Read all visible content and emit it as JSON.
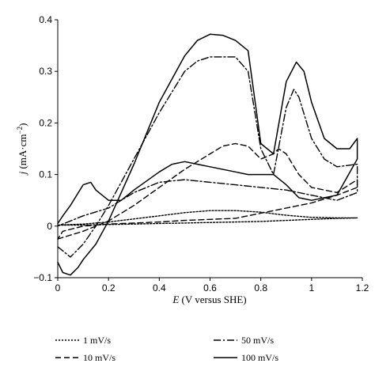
{
  "chart_data": {
    "type": "line",
    "title": "",
    "xlabel": "E (V versus SHE)",
    "xlabel_symbol": "E",
    "xlabel_rest": " (V versus SHE)",
    "ylabel": "j (mA·cm−2)",
    "ylabel_symbol": "j",
    "ylabel_rest": " (mA·cm",
    "ylabel_exp": "−2",
    "ylabel_close": ")",
    "xlim": [
      0,
      1.2
    ],
    "ylim": [
      -0.1,
      0.4
    ],
    "xticks": [
      0,
      0.2,
      0.4,
      0.6,
      0.8,
      1,
      1.2
    ],
    "xtick_labels": [
      "0",
      "0.2",
      "0.4",
      "0.6",
      "0.8",
      "1",
      "1.2"
    ],
    "yticks": [
      -0.1,
      0,
      0.1,
      0.2,
      0.3,
      0.4
    ],
    "ytick_labels": [
      "−0.1",
      "0",
      "0.1",
      "0.2",
      "0.3",
      "0.4"
    ],
    "grid": false,
    "legend_position": "bottom",
    "series": [
      {
        "name": "1 mV/s",
        "dash": "dotted",
        "x": [
          0.0,
          0.1,
          0.2,
          0.3,
          0.4,
          0.5,
          0.6,
          0.7,
          0.8,
          0.85,
          0.9,
          0.95,
          1.0,
          1.1,
          1.18,
          1.1,
          1.0,
          0.9,
          0.8,
          0.7,
          0.6,
          0.5,
          0.4,
          0.3,
          0.2,
          0.1,
          0.0
        ],
        "y": [
          0.002,
          0.004,
          0.008,
          0.014,
          0.02,
          0.026,
          0.03,
          0.03,
          0.027,
          0.024,
          0.021,
          0.019,
          0.017,
          0.016,
          0.016,
          0.015,
          0.013,
          0.011,
          0.009,
          0.008,
          0.007,
          0.006,
          0.005,
          0.004,
          0.003,
          0.002,
          0.002
        ]
      },
      {
        "name": "10 mV/s",
        "dash": "dashed",
        "x": [
          0.0,
          0.1,
          0.2,
          0.3,
          0.4,
          0.5,
          0.6,
          0.65,
          0.7,
          0.75,
          0.8,
          0.85,
          0.87,
          0.9,
          0.95,
          1.0,
          1.1,
          1.18,
          1.18,
          1.1,
          1.0,
          0.9,
          0.8,
          0.7,
          0.6,
          0.5,
          0.4,
          0.3,
          0.2,
          0.1,
          0.02,
          0.0
        ],
        "y": [
          -0.025,
          -0.01,
          0.01,
          0.04,
          0.075,
          0.11,
          0.14,
          0.155,
          0.16,
          0.155,
          0.13,
          0.14,
          0.15,
          0.14,
          0.1,
          0.075,
          0.065,
          0.09,
          0.075,
          0.06,
          0.045,
          0.035,
          0.025,
          0.015,
          0.013,
          0.011,
          0.008,
          0.006,
          0.004,
          0.0,
          -0.01,
          -0.025
        ]
      },
      {
        "name": "50 mV/s",
        "dash": "dashdot",
        "x": [
          0.0,
          0.05,
          0.1,
          0.15,
          0.2,
          0.3,
          0.4,
          0.5,
          0.55,
          0.6,
          0.65,
          0.7,
          0.75,
          0.8,
          0.85,
          0.9,
          0.93,
          0.95,
          1.0,
          1.05,
          1.1,
          1.18,
          1.18,
          1.1,
          1.0,
          0.9,
          0.8,
          0.7,
          0.6,
          0.5,
          0.4,
          0.3,
          0.2,
          0.1,
          0.05,
          0.0
        ],
        "y": [
          -0.04,
          -0.06,
          -0.035,
          0.0,
          0.04,
          0.13,
          0.22,
          0.3,
          0.32,
          0.328,
          0.328,
          0.328,
          0.3,
          0.15,
          0.1,
          0.23,
          0.265,
          0.25,
          0.17,
          0.13,
          0.115,
          0.12,
          0.065,
          0.05,
          0.06,
          0.07,
          0.075,
          0.08,
          0.085,
          0.09,
          0.085,
          0.065,
          0.035,
          0.02,
          0.01,
          0.0
        ]
      },
      {
        "name": "100 mV/s",
        "dash": "solid",
        "x": [
          0.0,
          0.02,
          0.05,
          0.08,
          0.1,
          0.15,
          0.2,
          0.3,
          0.4,
          0.5,
          0.55,
          0.6,
          0.65,
          0.7,
          0.75,
          0.8,
          0.85,
          0.9,
          0.94,
          0.97,
          1.0,
          1.05,
          1.1,
          1.15,
          1.18,
          1.18,
          1.1,
          1.0,
          0.95,
          0.9,
          0.85,
          0.8,
          0.75,
          0.7,
          0.6,
          0.5,
          0.45,
          0.4,
          0.3,
          0.25,
          0.2,
          0.15,
          0.13,
          0.1,
          0.05,
          0.02,
          0.0
        ],
        "y": [
          -0.07,
          -0.09,
          -0.095,
          -0.08,
          -0.065,
          -0.035,
          0.01,
          0.12,
          0.24,
          0.33,
          0.36,
          0.372,
          0.37,
          0.36,
          0.34,
          0.16,
          0.14,
          0.28,
          0.318,
          0.3,
          0.24,
          0.17,
          0.15,
          0.15,
          0.17,
          0.13,
          0.06,
          0.05,
          0.055,
          0.08,
          0.1,
          0.1,
          0.1,
          0.105,
          0.115,
          0.125,
          0.12,
          0.105,
          0.07,
          0.05,
          0.05,
          0.07,
          0.085,
          0.08,
          0.04,
          0.02,
          0.005
        ]
      }
    ],
    "legend": [
      {
        "label": "1 mV/s",
        "dash": "dotted"
      },
      {
        "label": "50 mV/s",
        "dash": "dashdot"
      },
      {
        "label": "10 mV/s",
        "dash": "dashed"
      },
      {
        "label": "100 mV/s",
        "dash": "solid"
      }
    ]
  }
}
